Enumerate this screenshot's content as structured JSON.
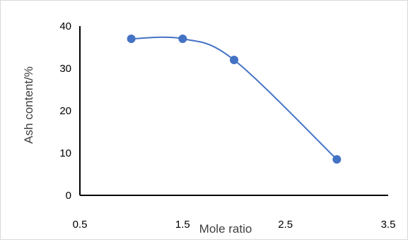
{
  "chart_data": {
    "type": "line",
    "title": "",
    "xlabel": "Mole ratio",
    "ylabel": "Ash content/%",
    "xlim": [
      0.5,
      3.5
    ],
    "ylim": [
      0,
      40
    ],
    "x_ticks": [
      "0.5",
      "1.5",
      "2.5",
      "3.5"
    ],
    "x_tick_values": [
      0.5,
      1.5,
      2.5,
      3.5
    ],
    "y_ticks": [
      "0",
      "10",
      "20",
      "30",
      "40"
    ],
    "y_tick_values": [
      0,
      10,
      20,
      30,
      40
    ],
    "grid": false,
    "smooth": true,
    "series": [
      {
        "name": "",
        "color": "#4472c4",
        "x": [
          1.0,
          1.5,
          2.0,
          3.0
        ],
        "y": [
          37,
          37,
          32,
          8.5
        ]
      }
    ]
  }
}
